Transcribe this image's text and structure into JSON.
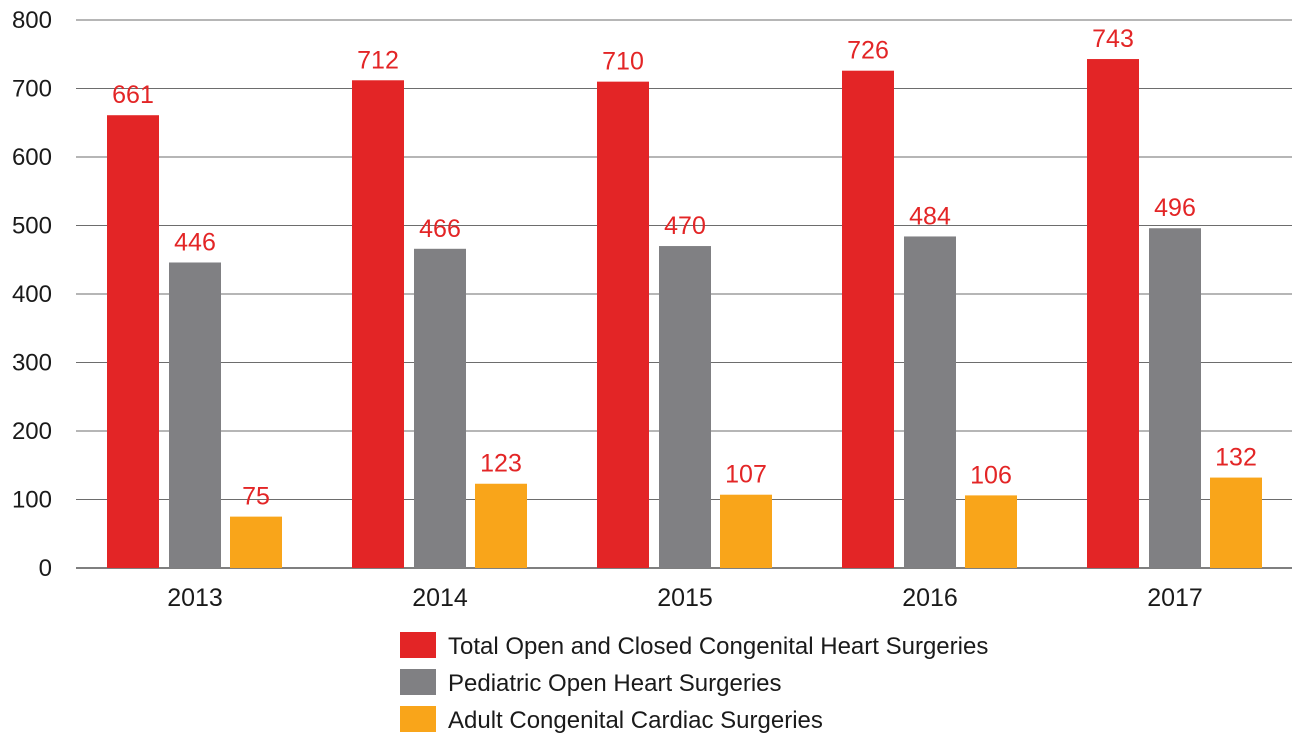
{
  "chart_data": {
    "type": "bar",
    "categories": [
      "2013",
      "2014",
      "2015",
      "2016",
      "2017"
    ],
    "series": [
      {
        "name": "Total Open and Closed Congenital Heart Surgeries",
        "color": "#e32526",
        "values": [
          661,
          712,
          710,
          726,
          743
        ]
      },
      {
        "name": "Pediatric Open Heart Surgeries",
        "color": "#808083",
        "values": [
          446,
          466,
          470,
          484,
          496
        ]
      },
      {
        "name": "Adult Congenital Cardiac Surgeries",
        "color": "#f9a51a",
        "values": [
          75,
          123,
          107,
          106,
          132
        ]
      }
    ],
    "data_label_color": "#e32526",
    "ylim": [
      0,
      800
    ],
    "yticks": [
      0,
      100,
      200,
      300,
      400,
      500,
      600,
      700,
      800
    ],
    "grid": true,
    "legend_position": "bottom"
  }
}
